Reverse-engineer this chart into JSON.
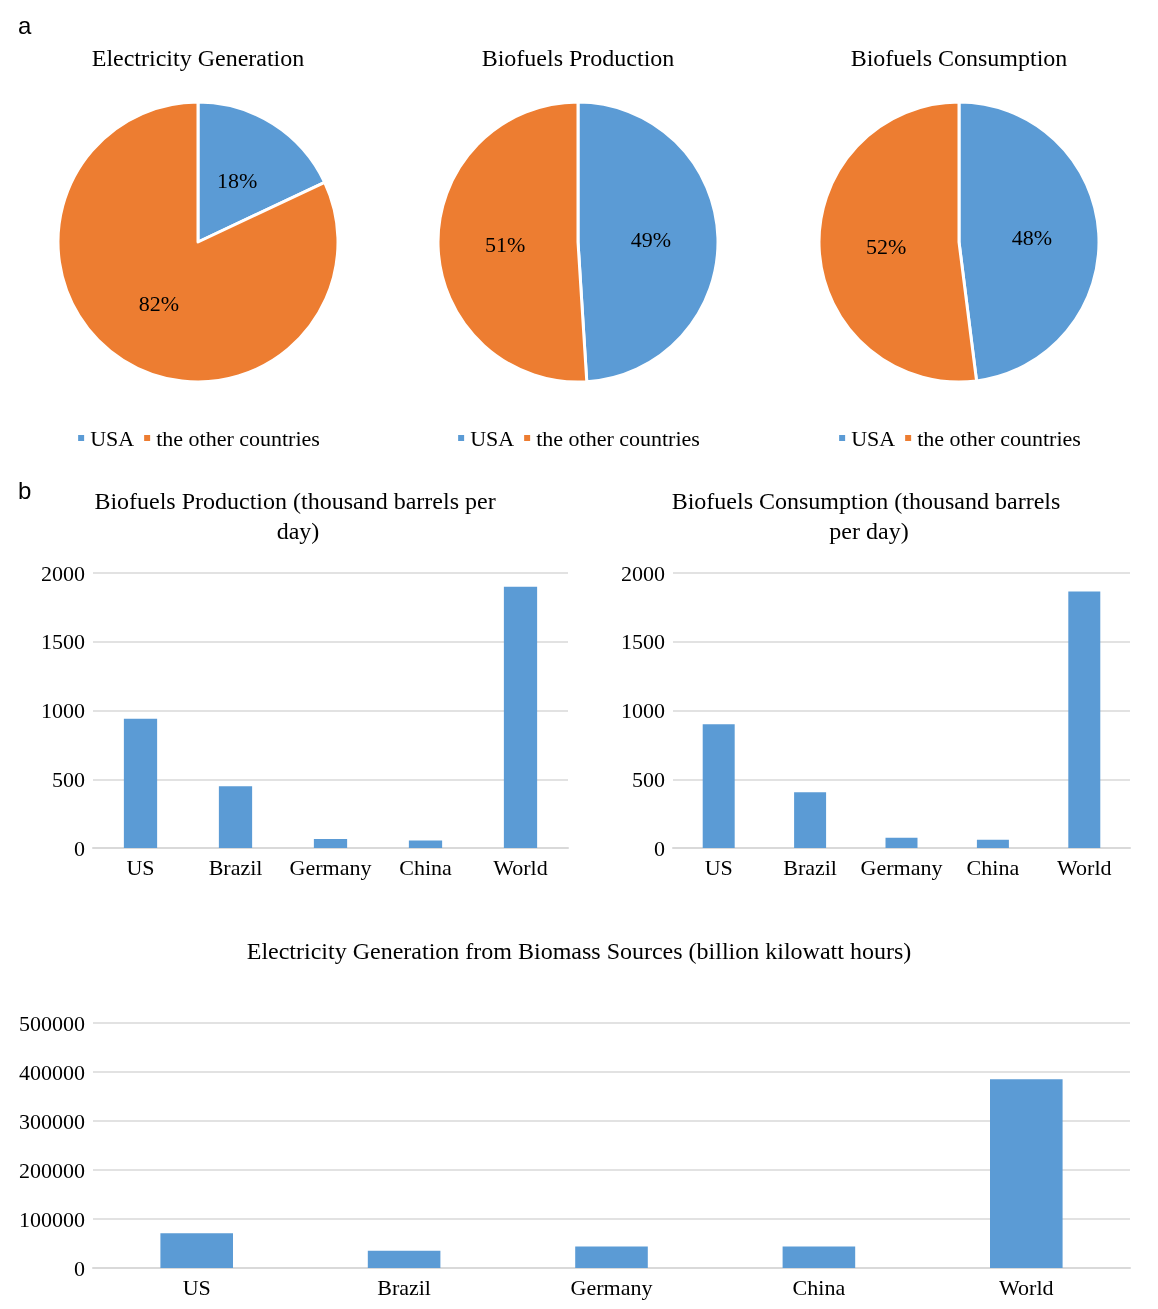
{
  "chart_data": [
    {
      "type": "pie",
      "title": "Electricity Generation",
      "annotations": [
        "a"
      ],
      "categories": [
        "USA",
        "the other countries"
      ],
      "values": [
        18,
        82
      ],
      "value_labels": [
        "18%",
        "82%"
      ],
      "colors": [
        "#5b9bd5",
        "#ed7d31"
      ],
      "legend": "bottom"
    },
    {
      "type": "pie",
      "title": "Biofuels Production",
      "categories": [
        "USA",
        "the other countries"
      ],
      "values": [
        49,
        51
      ],
      "value_labels": [
        "49%",
        "51%"
      ],
      "colors": [
        "#5b9bd5",
        "#ed7d31"
      ],
      "legend": "bottom"
    },
    {
      "type": "pie",
      "title": "Biofuels Consumption",
      "categories": [
        "USA",
        "the other countries"
      ],
      "values": [
        48,
        52
      ],
      "value_labels": [
        "48%",
        "52%"
      ],
      "colors": [
        "#5b9bd5",
        "#ed7d31"
      ],
      "legend": "bottom"
    },
    {
      "type": "bar",
      "title": "Biofuels Production (thousand barrels per day)",
      "annotations": [
        "b"
      ],
      "categories": [
        "US",
        "Brazil",
        "Germany",
        "China",
        "World"
      ],
      "values": [
        940,
        450,
        65,
        55,
        1900
      ],
      "color": "#5b9bd5",
      "ylim": [
        0,
        2000
      ],
      "yticks": [
        0,
        500,
        1000,
        1500,
        2000
      ],
      "grid": "y"
    },
    {
      "type": "bar",
      "title": "Biofuels Consumption (thousand barrels per day)",
      "categories": [
        "US",
        "Brazil",
        "Germany",
        "China",
        "World"
      ],
      "values": [
        900,
        405,
        75,
        60,
        1865
      ],
      "color": "#5b9bd5",
      "ylim": [
        0,
        2000
      ],
      "yticks": [
        0,
        500,
        1000,
        1500,
        2000
      ],
      "grid": "y"
    },
    {
      "type": "bar",
      "title": "Electricity Generation from Biomass Sources (billion kilowatt hours)",
      "categories": [
        "US",
        "Brazil",
        "Germany",
        "China",
        "World"
      ],
      "values": [
        71000,
        35000,
        44000,
        44000,
        385000
      ],
      "color": "#5b9bd5",
      "ylim": [
        0,
        500000
      ],
      "yticks": [
        0,
        100000,
        200000,
        300000,
        400000,
        500000
      ],
      "grid": "y"
    }
  ]
}
